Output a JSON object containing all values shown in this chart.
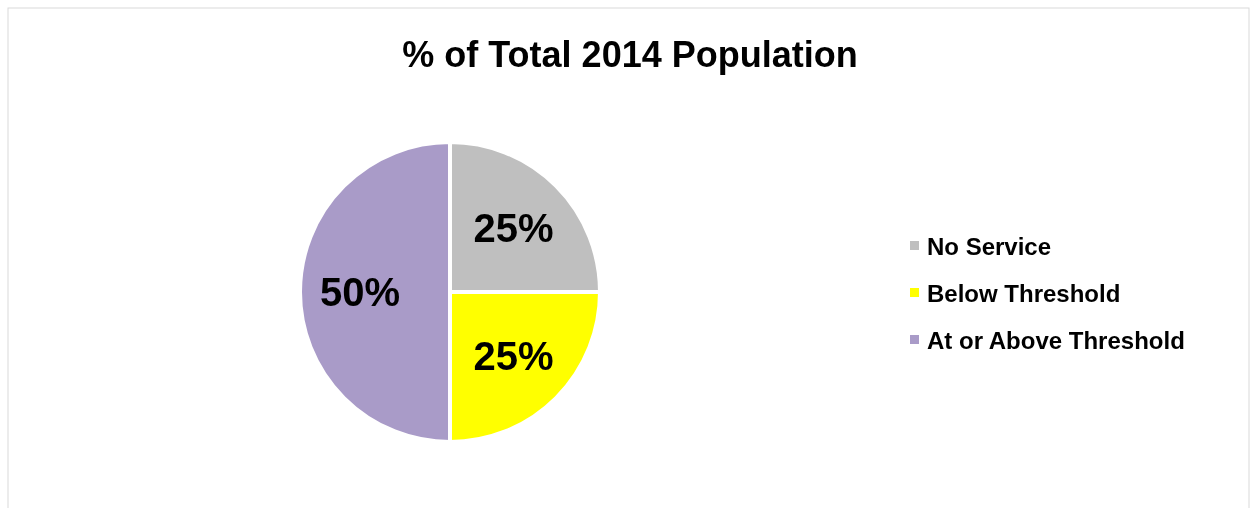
{
  "chart_data": {
    "type": "pie",
    "title": "% of Total 2014 Population",
    "categories": [
      "No Service",
      "Below Threshold",
      "At or Above Threshold"
    ],
    "values": [
      25,
      25,
      50
    ],
    "colors": [
      "#bfbfbf",
      "#ffff00",
      "#a99bc8"
    ],
    "value_labels": [
      "25%",
      "25%",
      "50%"
    ],
    "legend": "right"
  }
}
